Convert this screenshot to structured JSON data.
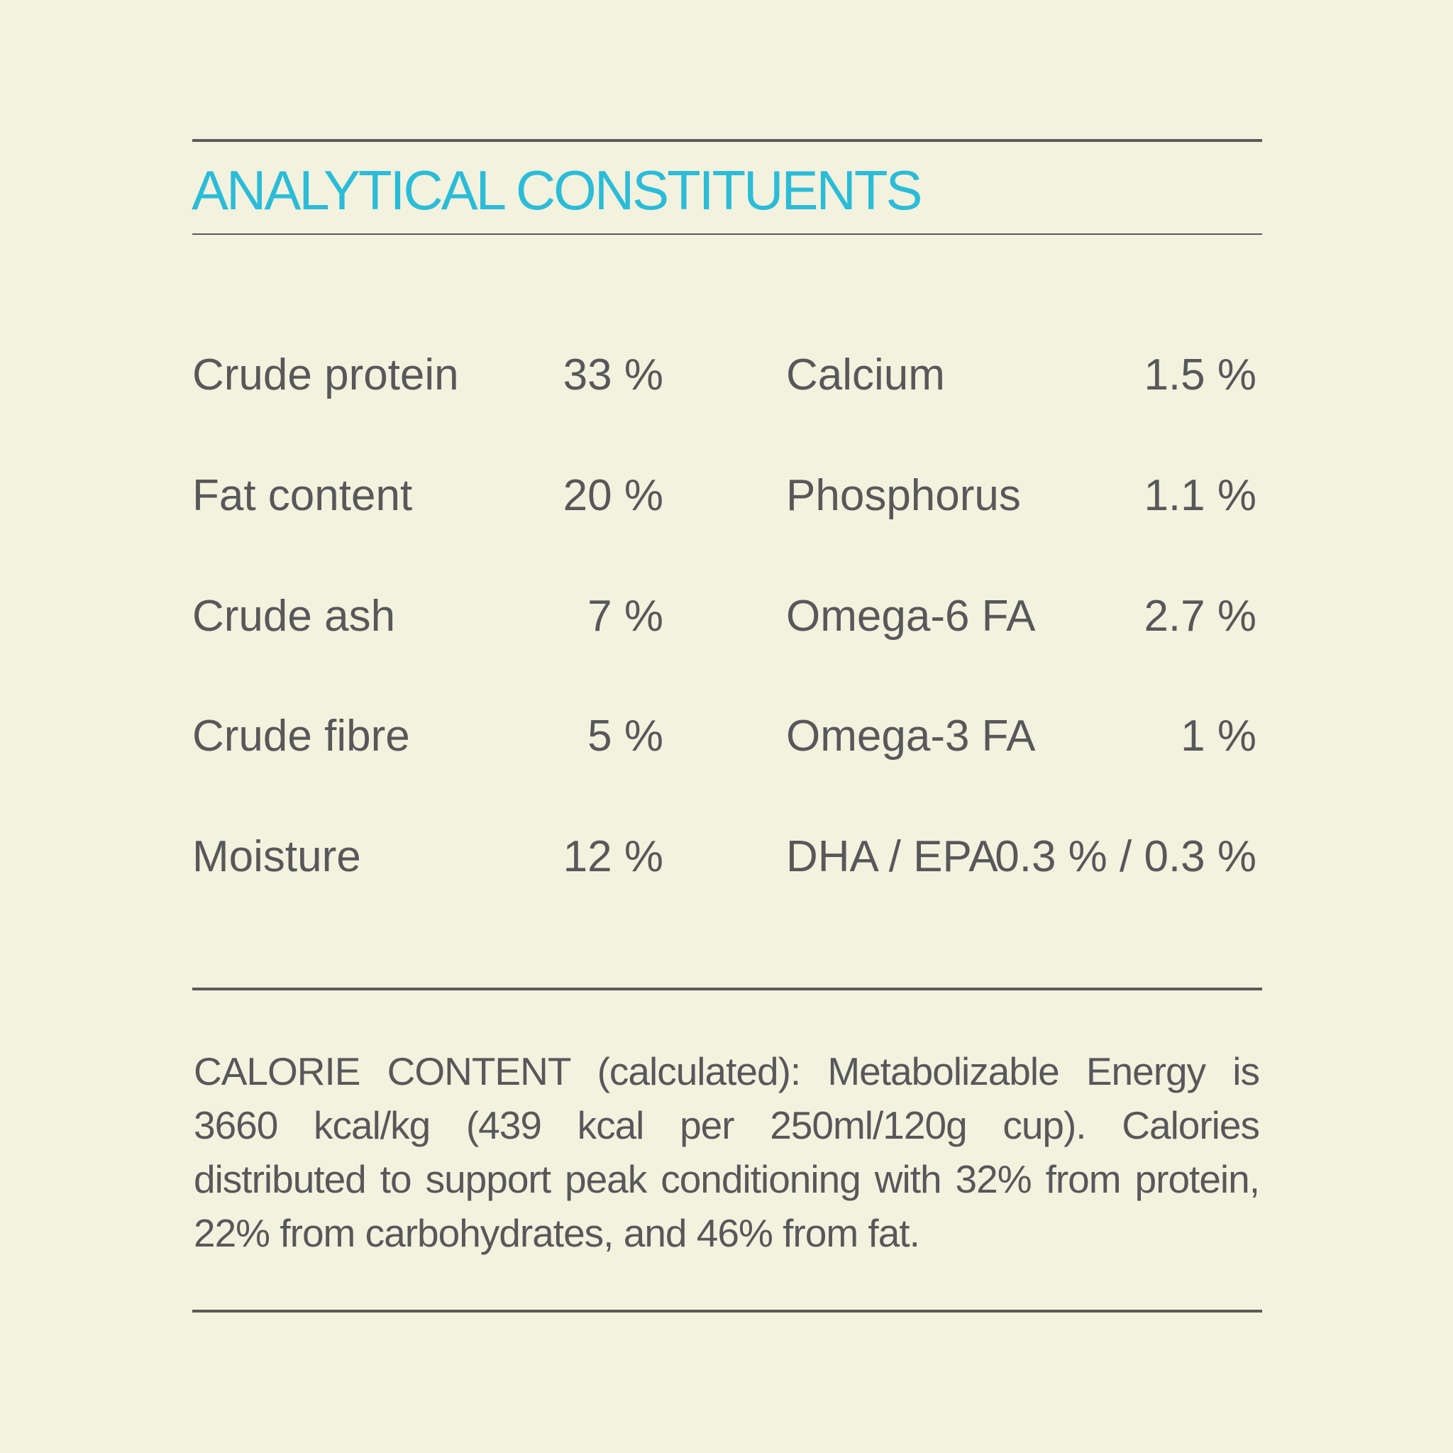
{
  "title": "ANALYTICAL CONSTITUENTS",
  "colors": {
    "background": "#f3f2df",
    "title": "#2bbcd8",
    "text": "#58585a",
    "rule": "#5a5a58"
  },
  "left_column": [
    {
      "label": "Crude protein",
      "value": "33 %"
    },
    {
      "label": "Fat content",
      "value": "20 %"
    },
    {
      "label": "Crude ash",
      "value": "7 %"
    },
    {
      "label": "Crude fibre",
      "value": "5 %"
    },
    {
      "label": "Moisture",
      "value": "12 %"
    }
  ],
  "right_column": [
    {
      "label": "Calcium",
      "value": "1.5 %"
    },
    {
      "label": "Phosphorus",
      "value": "1.1 %"
    },
    {
      "label": "Omega-6 FA",
      "value": "2.7 %"
    },
    {
      "label": "Omega-3 FA",
      "value": "1 %"
    },
    {
      "label": "DHA / EPA",
      "value": "0.3 % / 0.3 %"
    }
  ],
  "calorie_content": "CALORIE CONTENT (calculated): Metabolizable Energy is 3660 kcal/kg (439 kcal per 250ml/120g cup). Calories distributed to support peak conditioning with 32% from protein, 22% from carbohydrates, and 46% from fat."
}
